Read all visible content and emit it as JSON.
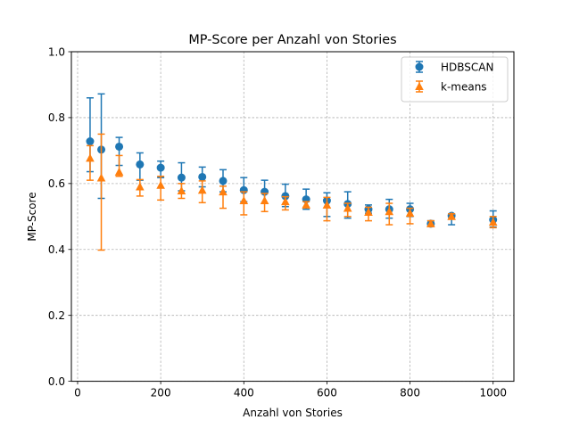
{
  "chart_data": {
    "type": "scatter",
    "title": "MP-Score per Anzahl von Stories",
    "xlabel": "Anzahl von Stories",
    "ylabel": "MP-Score",
    "xlim": [
      -15,
      1050
    ],
    "ylim": [
      0,
      1.0
    ],
    "xticks": [
      0,
      200,
      400,
      600,
      800,
      1000
    ],
    "xtick_labels": [
      "0",
      "200",
      "400",
      "600",
      "800",
      "1000"
    ],
    "yticks": [
      0,
      0.2,
      0.4,
      0.6,
      0.8,
      1.0
    ],
    "ytick_labels": [
      "0.0",
      "0.2",
      "0.4",
      "0.6",
      "0.8",
      "1.0"
    ],
    "grid": true,
    "legend_position": "top-right",
    "series": [
      {
        "name": "HDBSCAN",
        "marker": "circle",
        "color": "#1f77b4",
        "x": [
          30,
          57,
          100,
          150,
          200,
          250,
          300,
          350,
          400,
          450,
          500,
          550,
          600,
          650,
          700,
          750,
          800,
          850,
          900,
          1000
        ],
        "y": [
          0.728,
          0.703,
          0.712,
          0.658,
          0.648,
          0.618,
          0.62,
          0.608,
          0.58,
          0.575,
          0.562,
          0.552,
          0.548,
          0.538,
          0.522,
          0.522,
          0.522,
          0.478,
          0.502,
          0.49
        ],
        "yerr_low": [
          0.636,
          0.555,
          0.655,
          0.61,
          0.618,
          0.578,
          0.59,
          0.575,
          0.545,
          0.54,
          0.53,
          0.522,
          0.5,
          0.495,
          0.51,
          0.495,
          0.5,
          0.47,
          0.475,
          0.468
        ],
        "yerr_high": [
          0.86,
          0.872,
          0.74,
          0.693,
          0.668,
          0.663,
          0.65,
          0.642,
          0.618,
          0.61,
          0.598,
          0.583,
          0.572,
          0.575,
          0.535,
          0.552,
          0.54,
          0.487,
          0.508,
          0.517
        ]
      },
      {
        "name": "k-means",
        "marker": "triangle",
        "color": "#ff7f0e",
        "x": [
          30,
          57,
          100,
          150,
          200,
          250,
          300,
          350,
          400,
          450,
          500,
          550,
          600,
          650,
          700,
          750,
          800,
          850,
          900,
          1000
        ],
        "y": [
          0.677,
          0.617,
          0.635,
          0.59,
          0.595,
          0.578,
          0.58,
          0.575,
          0.548,
          0.548,
          0.545,
          0.535,
          0.535,
          0.525,
          0.513,
          0.515,
          0.51,
          0.478,
          0.5,
          0.483
        ],
        "yerr_low": [
          0.61,
          0.398,
          0.622,
          0.562,
          0.55,
          0.555,
          0.542,
          0.525,
          0.505,
          0.515,
          0.52,
          0.528,
          0.487,
          0.5,
          0.487,
          0.475,
          0.478,
          0.47,
          0.493,
          0.466
        ],
        "yerr_high": [
          0.715,
          0.75,
          0.685,
          0.612,
          0.622,
          0.6,
          0.608,
          0.592,
          0.575,
          0.57,
          0.56,
          0.545,
          0.558,
          0.54,
          0.528,
          0.54,
          0.525,
          0.487,
          0.508,
          0.5
        ]
      }
    ]
  }
}
